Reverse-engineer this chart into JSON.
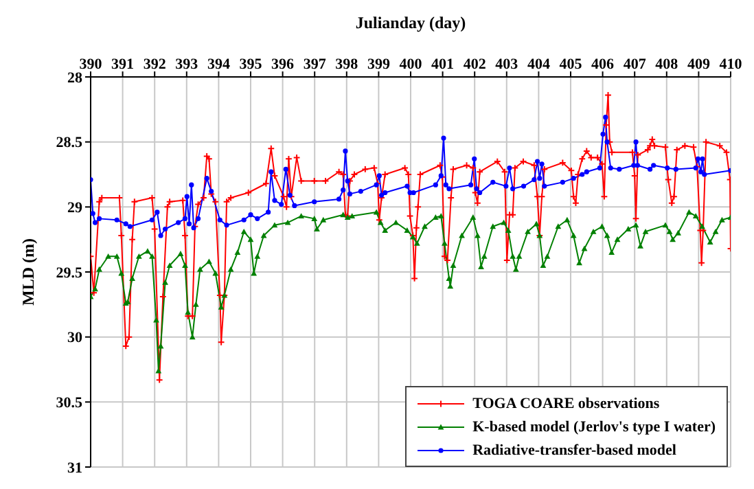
{
  "chart_data": {
    "type": "line",
    "xlabel": "Julianday (day)",
    "ylabel": "MLD (m)",
    "xlim": [
      390,
      410
    ],
    "xticks": [
      390,
      391,
      392,
      393,
      394,
      395,
      396,
      397,
      398,
      399,
      400,
      401,
      402,
      403,
      404,
      405,
      406,
      407,
      408,
      409,
      410
    ],
    "ylim": [
      31,
      28
    ],
    "yticks": [
      28,
      28.5,
      29,
      29.5,
      30,
      30.5,
      31
    ],
    "grid": true,
    "legend": "bottom right",
    "line_style": "solid",
    "series": [
      {
        "name": "TOGA COARE observations",
        "color": "#ff0000",
        "marker": "cross",
        "x": [
          390.0,
          390.1,
          390.27,
          390.35,
          390.9,
          390.96,
          391.1,
          391.2,
          391.3,
          391.37,
          391.92,
          392.0,
          392.15,
          392.26,
          392.4,
          392.47,
          392.88,
          392.95,
          393.04,
          393.18,
          393.26,
          393.36,
          393.53,
          393.63,
          393.7,
          393.77,
          393.9,
          394.04,
          394.08,
          394.18,
          394.25,
          394.38,
          394.93,
          395.48,
          395.64,
          395.75,
          396.03,
          396.12,
          396.19,
          396.27,
          396.44,
          396.58,
          396.99,
          397.34,
          397.76,
          397.89,
          397.96,
          398.03,
          398.1,
          398.24,
          398.58,
          398.86,
          398.97,
          399.02,
          399.09,
          399.2,
          399.82,
          399.93,
          399.98,
          400.07,
          400.12,
          400.18,
          400.23,
          400.3,
          400.92,
          400.99,
          401.06,
          401.15,
          401.26,
          401.33,
          401.75,
          401.95,
          402.02,
          402.09,
          402.16,
          402.71,
          402.94,
          403.01,
          403.09,
          403.19,
          403.26,
          403.52,
          403.86,
          403.96,
          404.03,
          404.1,
          404.18,
          404.75,
          405.02,
          405.09,
          405.16,
          405.23,
          405.36,
          405.5,
          405.64,
          405.84,
          405.98,
          406.05,
          406.11,
          406.17,
          406.22,
          406.29,
          406.93,
          407.0,
          407.04,
          407.1,
          407.41,
          407.48,
          407.55,
          407.62,
          407.96,
          408.05,
          408.16,
          408.23,
          408.32,
          408.57,
          408.84,
          408.95,
          409.05,
          409.09,
          409.14,
          409.23,
          409.66,
          409.87,
          409.98,
          410.0
        ],
        "values": [
          29.38,
          29.66,
          28.96,
          28.93,
          28.93,
          29.22,
          30.07,
          30.0,
          29.25,
          28.96,
          28.93,
          29.17,
          30.33,
          29.69,
          29.0,
          28.96,
          28.95,
          29.22,
          29.84,
          29.84,
          29.15,
          28.98,
          28.93,
          28.61,
          28.63,
          28.9,
          28.96,
          29.68,
          30.04,
          29.68,
          28.96,
          28.93,
          28.89,
          28.82,
          28.55,
          28.76,
          28.92,
          29.0,
          28.63,
          28.92,
          28.62,
          28.8,
          28.8,
          28.8,
          28.73,
          28.75,
          29.06,
          29.07,
          28.8,
          28.75,
          28.71,
          28.7,
          28.82,
          29.1,
          28.93,
          28.75,
          28.7,
          28.75,
          29.07,
          29.22,
          29.55,
          29.16,
          29.0,
          28.75,
          28.68,
          28.77,
          29.38,
          29.41,
          28.93,
          28.71,
          28.68,
          28.7,
          28.89,
          28.97,
          28.73,
          28.65,
          28.73,
          29.41,
          29.06,
          29.06,
          28.7,
          28.65,
          28.68,
          28.92,
          29.22,
          28.92,
          28.71,
          28.66,
          28.72,
          28.92,
          28.97,
          28.75,
          28.63,
          28.57,
          28.62,
          28.62,
          28.67,
          28.92,
          28.37,
          28.14,
          28.5,
          28.58,
          28.58,
          28.76,
          29.09,
          28.6,
          28.56,
          28.53,
          28.48,
          28.53,
          28.54,
          28.79,
          28.97,
          28.92,
          28.56,
          28.53,
          28.54,
          28.69,
          29.18,
          29.43,
          29.18,
          28.5,
          28.53,
          28.58,
          28.79,
          29.32
        ]
      },
      {
        "name": "K-based model (Jerlov's type I water)",
        "color": "#008000",
        "marker": "triangle",
        "x": [
          390.0,
          390.14,
          390.27,
          390.55,
          390.82,
          390.96,
          391.1,
          391.16,
          391.3,
          391.51,
          391.78,
          391.92,
          392.05,
          392.12,
          392.19,
          392.33,
          392.47,
          392.81,
          392.95,
          393.04,
          393.18,
          393.29,
          393.42,
          393.7,
          393.9,
          394.08,
          394.18,
          394.38,
          394.59,
          394.79,
          395.0,
          395.1,
          395.21,
          395.41,
          395.75,
          396.16,
          396.58,
          396.99,
          397.07,
          397.27,
          397.89,
          398.03,
          398.17,
          398.93,
          399.06,
          399.2,
          399.54,
          399.89,
          400.07,
          400.2,
          400.44,
          400.78,
          400.95,
          401.06,
          401.2,
          401.24,
          401.33,
          401.6,
          401.95,
          402.09,
          402.2,
          402.3,
          402.57,
          402.91,
          403.05,
          403.19,
          403.29,
          403.39,
          403.66,
          403.93,
          404.03,
          404.14,
          404.27,
          404.61,
          404.89,
          405.09,
          405.27,
          405.43,
          405.71,
          405.98,
          406.14,
          406.28,
          406.46,
          406.8,
          407.04,
          407.18,
          407.34,
          407.96,
          408.09,
          408.19,
          408.36,
          408.7,
          408.91,
          409.11,
          409.36,
          409.53,
          409.73,
          410.0
        ],
        "values": [
          29.69,
          29.63,
          29.48,
          29.38,
          29.38,
          29.51,
          29.74,
          29.73,
          29.55,
          29.38,
          29.34,
          29.38,
          29.87,
          30.26,
          30.07,
          29.58,
          29.45,
          29.36,
          29.45,
          29.81,
          30.0,
          29.75,
          29.48,
          29.42,
          29.51,
          29.77,
          29.68,
          29.48,
          29.35,
          29.19,
          29.25,
          29.51,
          29.38,
          29.22,
          29.14,
          29.12,
          29.07,
          29.09,
          29.17,
          29.1,
          29.06,
          29.08,
          29.07,
          29.04,
          29.12,
          29.18,
          29.12,
          29.18,
          29.23,
          29.28,
          29.15,
          29.08,
          29.07,
          29.28,
          29.55,
          29.61,
          29.45,
          29.22,
          29.08,
          29.22,
          29.46,
          29.38,
          29.15,
          29.12,
          29.18,
          29.38,
          29.48,
          29.38,
          29.19,
          29.13,
          29.22,
          29.45,
          29.38,
          29.15,
          29.1,
          29.22,
          29.43,
          29.32,
          29.19,
          29.15,
          29.22,
          29.35,
          29.25,
          29.17,
          29.14,
          29.3,
          29.19,
          29.14,
          29.19,
          29.25,
          29.2,
          29.04,
          29.07,
          29.15,
          29.27,
          29.19,
          29.1,
          29.08
        ]
      },
      {
        "name": "Radiative-transfer-based model",
        "color": "#0000ff",
        "marker": "circle",
        "x": [
          390.0,
          390.07,
          390.14,
          390.27,
          390.82,
          391.1,
          391.23,
          391.92,
          392.08,
          392.19,
          392.33,
          392.74,
          392.95,
          393.01,
          393.08,
          393.15,
          393.22,
          393.36,
          393.63,
          393.77,
          394.04,
          394.25,
          394.79,
          395.0,
          395.21,
          395.55,
          395.64,
          395.75,
          395.96,
          396.1,
          396.23,
          396.37,
          396.99,
          397.76,
          397.89,
          397.96,
          398.03,
          398.1,
          398.44,
          398.93,
          399.02,
          399.09,
          399.2,
          399.89,
          399.98,
          400.09,
          400.78,
          400.95,
          401.03,
          401.1,
          401.2,
          401.88,
          401.99,
          402.06,
          402.16,
          402.57,
          402.98,
          403.09,
          403.19,
          403.53,
          403.86,
          403.96,
          404.03,
          404.1,
          404.18,
          404.75,
          405.09,
          405.36,
          405.5,
          405.91,
          406.01,
          406.09,
          406.14,
          406.25,
          406.52,
          406.97,
          407.04,
          407.09,
          407.48,
          407.59,
          408.02,
          408.29,
          408.91,
          408.98,
          409.07,
          409.12,
          409.18,
          410.0
        ],
        "values": [
          28.79,
          29.05,
          29.12,
          29.09,
          29.1,
          29.13,
          29.15,
          29.1,
          29.04,
          29.22,
          29.17,
          29.12,
          29.09,
          28.92,
          29.13,
          28.83,
          29.16,
          29.09,
          28.78,
          28.88,
          29.1,
          29.14,
          29.1,
          29.06,
          29.09,
          29.04,
          28.73,
          28.95,
          28.98,
          28.71,
          28.91,
          28.99,
          28.96,
          28.94,
          28.87,
          28.57,
          28.8,
          28.9,
          28.88,
          28.83,
          28.76,
          28.91,
          28.89,
          28.84,
          28.89,
          28.89,
          28.83,
          28.76,
          28.47,
          28.83,
          28.86,
          28.83,
          28.63,
          28.86,
          28.89,
          28.81,
          28.84,
          28.7,
          28.86,
          28.84,
          28.79,
          28.65,
          28.78,
          28.67,
          28.84,
          28.81,
          28.78,
          28.75,
          28.73,
          28.7,
          28.44,
          28.31,
          28.5,
          28.7,
          28.71,
          28.68,
          28.5,
          28.68,
          28.71,
          28.68,
          28.7,
          28.71,
          28.7,
          28.63,
          28.73,
          28.63,
          28.75,
          28.72
        ]
      }
    ]
  }
}
